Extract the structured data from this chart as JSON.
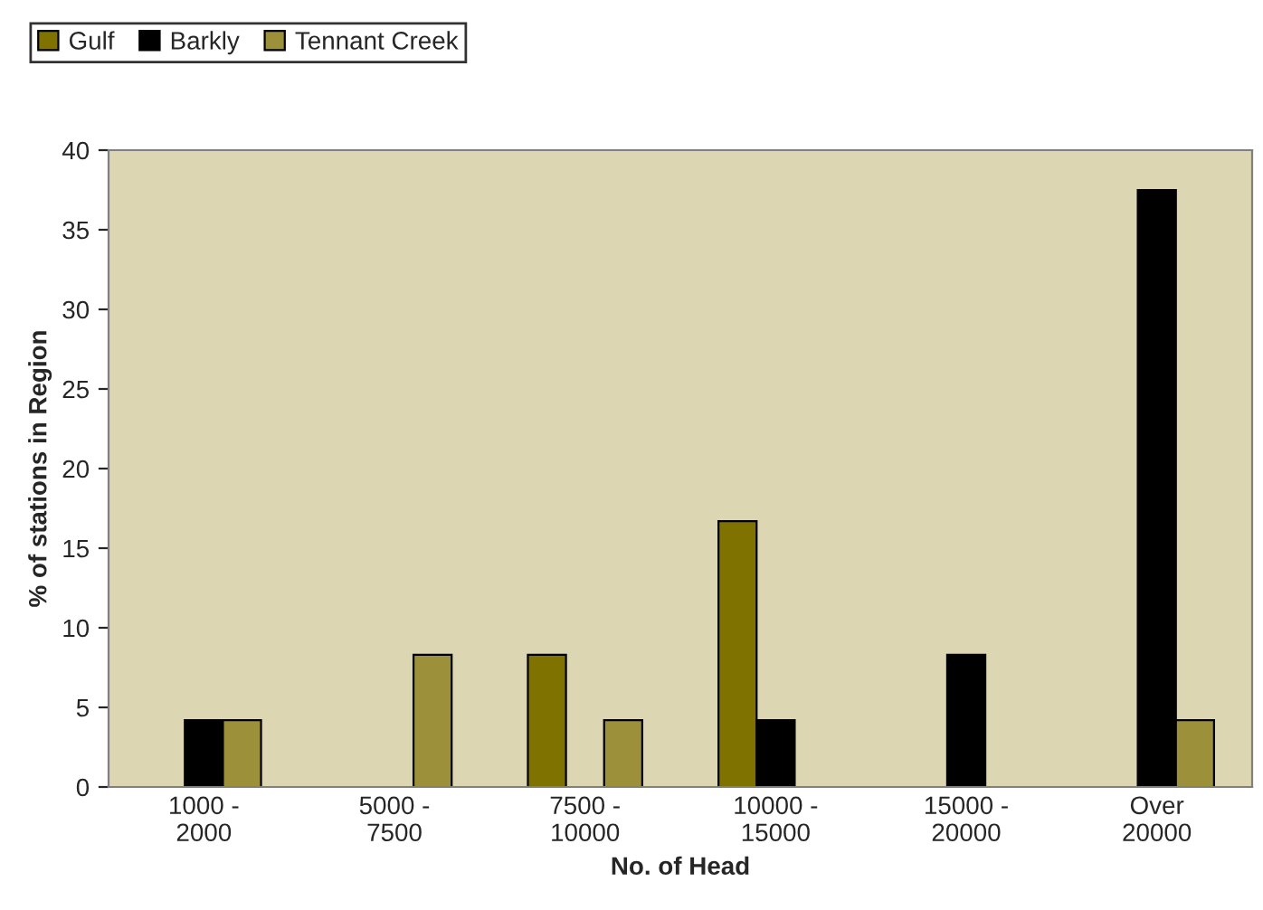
{
  "chart_data": {
    "type": "bar",
    "xlabel": "No. of Head",
    "ylabel": "% of stations in Region",
    "categories": [
      "1000 -\n2000",
      "5000 -\n7500",
      "7500 -\n10000",
      "10000 -\n15000",
      "15000 -\n20000",
      "Over\n20000"
    ],
    "series": [
      {
        "name": "Gulf",
        "color": "#7f7200",
        "values": [
          null,
          null,
          8.3,
          16.7,
          null,
          null
        ]
      },
      {
        "name": "Barkly",
        "color": "#000000",
        "values": [
          4.2,
          null,
          null,
          4.2,
          8.3,
          37.5
        ]
      },
      {
        "name": "Tennant Creek",
        "color": "#9c903a",
        "values": [
          4.2,
          8.3,
          4.2,
          null,
          null,
          4.2
        ]
      }
    ],
    "ylim": [
      0,
      40
    ],
    "yticks": [
      0,
      5,
      10,
      15,
      20,
      25,
      30,
      35,
      40
    ],
    "grid": false,
    "legend": "top left"
  }
}
